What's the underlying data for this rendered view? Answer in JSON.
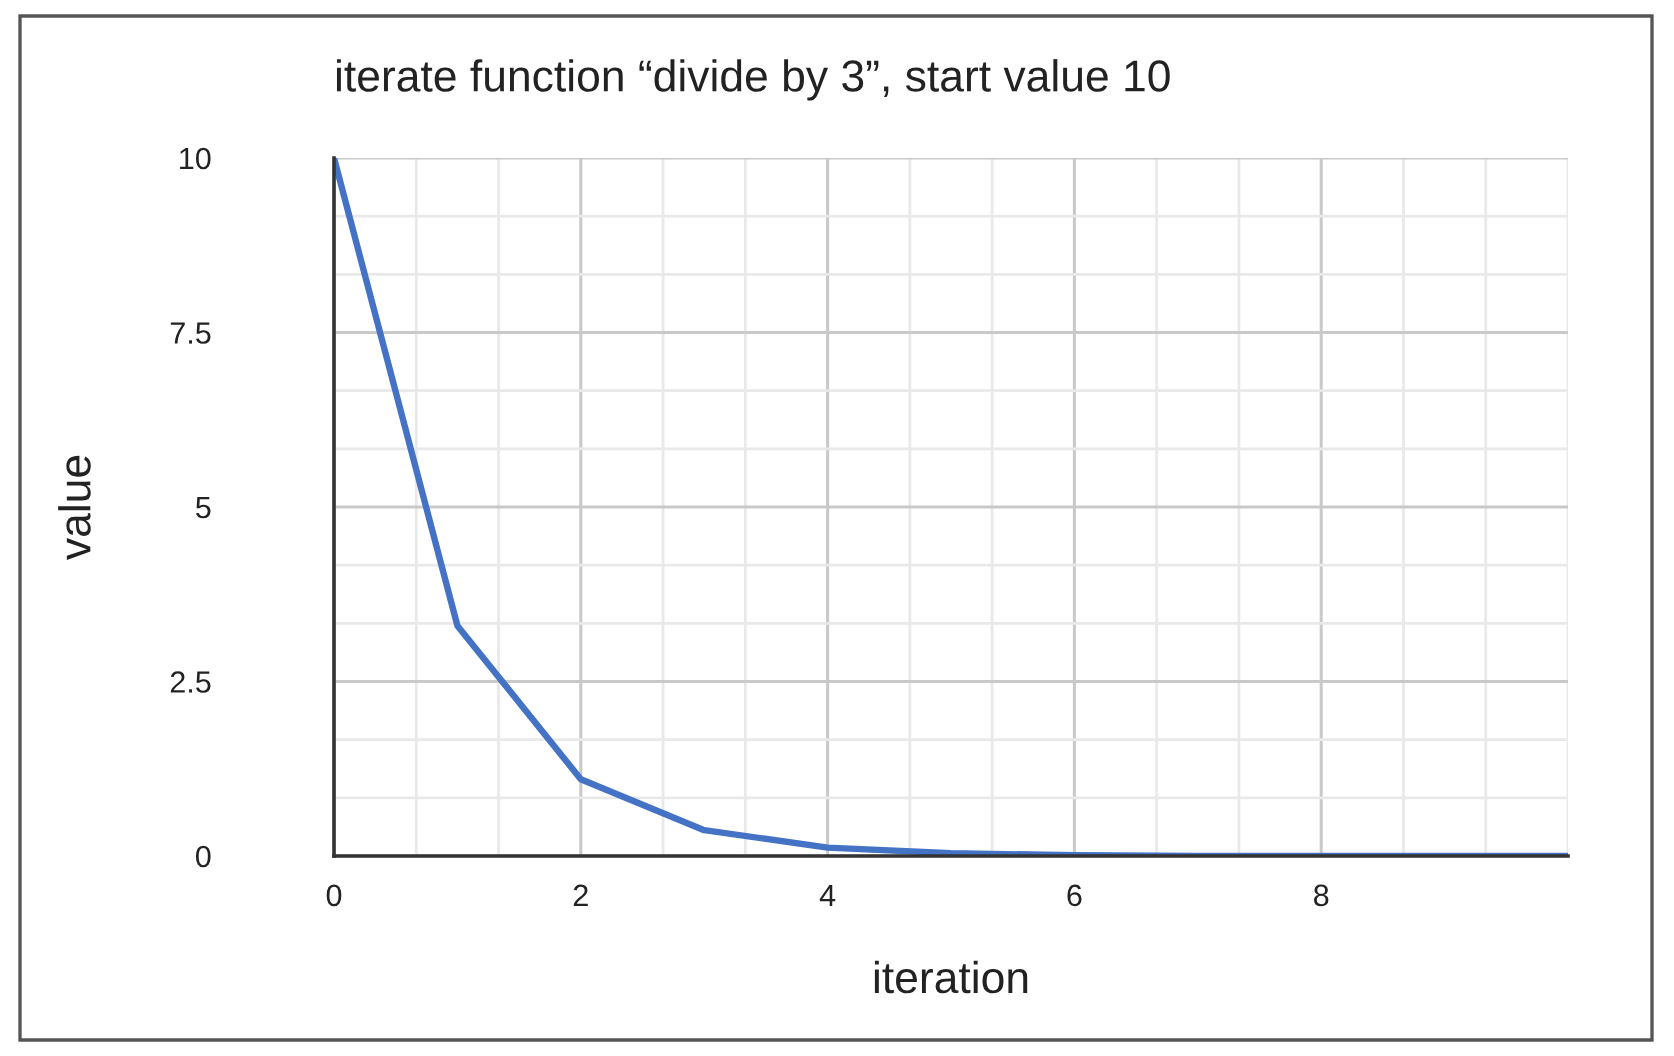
{
  "chart_data": {
    "type": "line",
    "title": "iterate function “divide by 3”, start value 10",
    "xlabel": "iteration",
    "ylabel": "value",
    "x": [
      0,
      1,
      2,
      3,
      4,
      5,
      6,
      7,
      8,
      9,
      10
    ],
    "series": [
      {
        "color": "#4472c4",
        "values": [
          10,
          3.3,
          1.1,
          0.37,
          0.12,
          0.04,
          0.01,
          0,
          0,
          0,
          0
        ]
      }
    ],
    "xlim": [
      0,
      10
    ],
    "ylim": [
      0,
      10
    ],
    "xticks": [
      0,
      2,
      4,
      6,
      8
    ],
    "yticks": [
      0,
      2.5,
      5,
      7.5,
      10
    ],
    "grid": true
  }
}
